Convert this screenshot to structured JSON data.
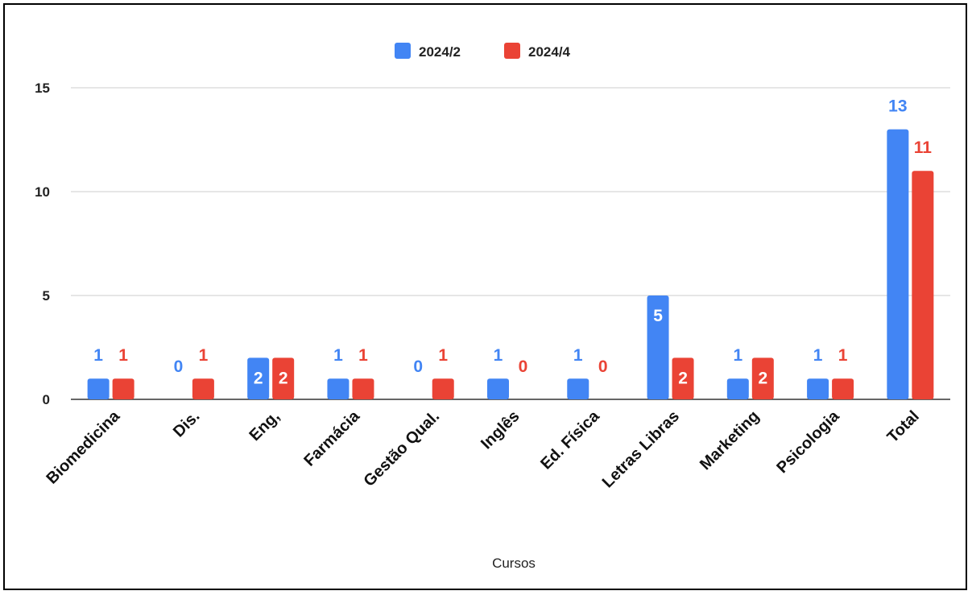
{
  "chart_data": {
    "type": "bar",
    "categories": [
      "Biomedicina",
      "Dis.",
      "Eng,",
      "Farmácia",
      "Gestão Qual.",
      "Inglês",
      "Ed. Física",
      "Letras Libras",
      "Marketing",
      "Psicologia",
      "Total"
    ],
    "series": [
      {
        "name": "2024/2",
        "color": "#4285F4",
        "values": [
          1,
          0,
          2,
          1,
          0,
          1,
          1,
          5,
          1,
          1,
          13
        ]
      },
      {
        "name": "2024/4",
        "color": "#EA4335",
        "values": [
          1,
          1,
          2,
          1,
          1,
          0,
          0,
          2,
          2,
          1,
          11
        ]
      }
    ],
    "title": "",
    "xlabel": "Cursos",
    "ylabel": "",
    "ylim": [
      0,
      15
    ],
    "yticks": [
      0,
      5,
      10,
      15
    ],
    "grid": true,
    "legend_position": "top-center",
    "data_labels": true
  }
}
